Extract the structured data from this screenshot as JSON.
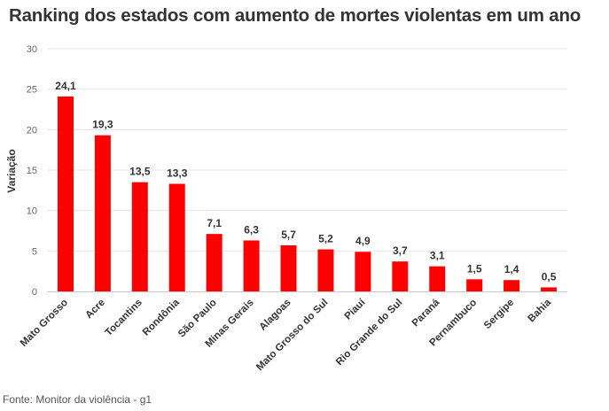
{
  "chart_data": {
    "type": "bar",
    "title": "Ranking dos estados com aumento de mortes violentas em um ano",
    "ylabel": "Variação",
    "xlabel": "",
    "ylim": [
      0,
      30
    ],
    "yticks": [
      0,
      5,
      10,
      15,
      20,
      25,
      30
    ],
    "grid": true,
    "bar_color": "#ff0000",
    "categories": [
      "Mato Grosso",
      "Acre",
      "Tocantins",
      "Rondônia",
      "São Paulo",
      "Minas Gerais",
      "Alagoas",
      "Mato Grosso do Sul",
      "Piauí",
      "Rio Grande do Sul",
      "Paraná",
      "Pernambuco",
      "Sergipe",
      "Bahia"
    ],
    "values": [
      24.1,
      19.3,
      13.5,
      13.3,
      7.1,
      6.3,
      5.7,
      5.2,
      4.9,
      3.7,
      3.1,
      1.5,
      1.4,
      0.5
    ],
    "data_labels": [
      "24,1",
      "19,3",
      "13,5",
      "13,3",
      "7,1",
      "6,3",
      "5,7",
      "5,2",
      "4,9",
      "3,7",
      "3,1",
      "1,5",
      "1,4",
      "0,5"
    ],
    "source": "Fonte: Monitor da violência - g1"
  }
}
